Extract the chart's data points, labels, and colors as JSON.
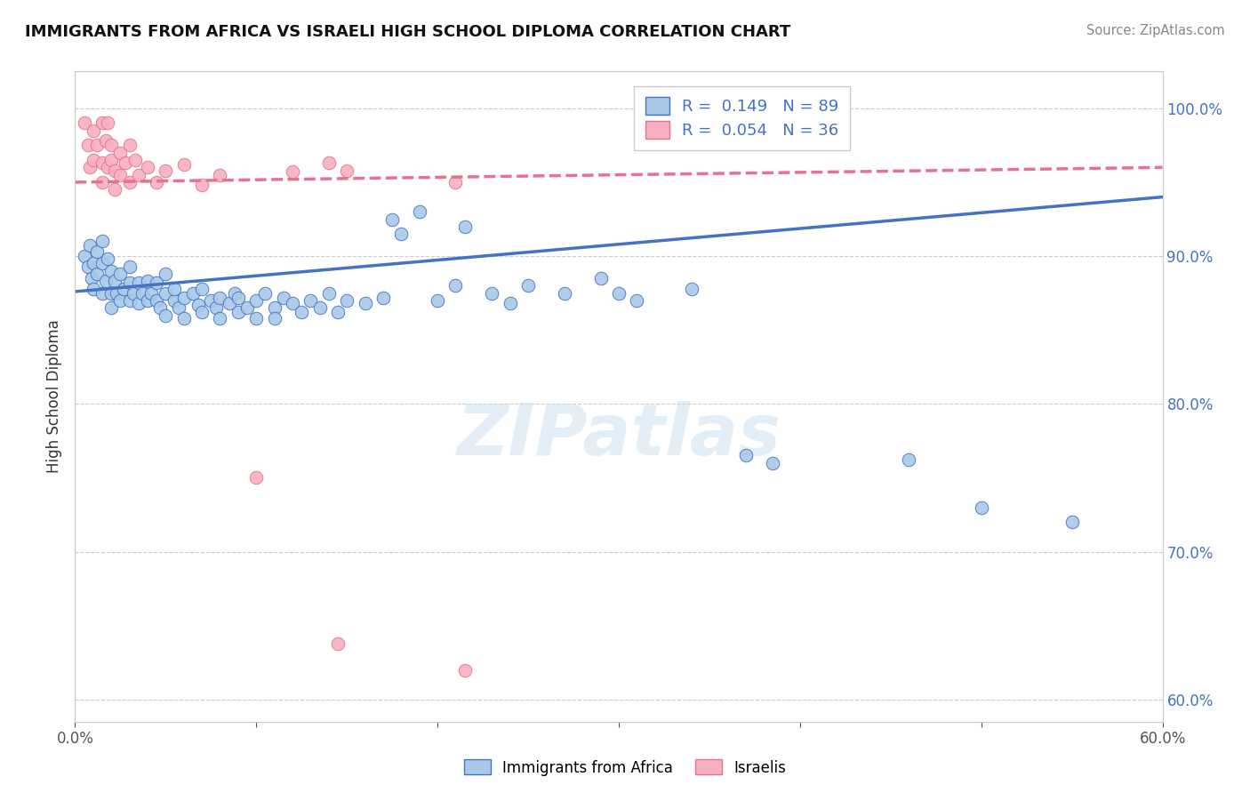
{
  "title": "IMMIGRANTS FROM AFRICA VS ISRAELI HIGH SCHOOL DIPLOMA CORRELATION CHART",
  "source": "Source: ZipAtlas.com",
  "ylabel": "High School Diploma",
  "legend_label1": "Immigrants from Africa",
  "legend_label2": "Israelis",
  "r1": 0.149,
  "n1": 89,
  "r2": 0.054,
  "n2": 36,
  "y_ticks_right": [
    0.6,
    0.7,
    0.8,
    0.9,
    1.0
  ],
  "y_tick_labels_right": [
    "60.0%",
    "70.0%",
    "80.0%",
    "90.0%",
    "100.0%"
  ],
  "xlim": [
    0.0,
    0.6
  ],
  "ylim": [
    0.585,
    1.025
  ],
  "color1": "#a8c8e8",
  "color2": "#f8b0c0",
  "line_color1": "#4472c4",
  "line_color2": "#e87090",
  "watermark": "ZIPatlas",
  "blue_scatter": [
    [
      0.005,
      0.9
    ],
    [
      0.007,
      0.893
    ],
    [
      0.008,
      0.907
    ],
    [
      0.009,
      0.885
    ],
    [
      0.01,
      0.895
    ],
    [
      0.01,
      0.878
    ],
    [
      0.012,
      0.903
    ],
    [
      0.012,
      0.888
    ],
    [
      0.015,
      0.895
    ],
    [
      0.015,
      0.875
    ],
    [
      0.015,
      0.91
    ],
    [
      0.017,
      0.883
    ],
    [
      0.018,
      0.898
    ],
    [
      0.02,
      0.875
    ],
    [
      0.02,
      0.89
    ],
    [
      0.02,
      0.865
    ],
    [
      0.022,
      0.883
    ],
    [
      0.023,
      0.875
    ],
    [
      0.025,
      0.888
    ],
    [
      0.025,
      0.87
    ],
    [
      0.027,
      0.878
    ],
    [
      0.03,
      0.882
    ],
    [
      0.03,
      0.87
    ],
    [
      0.03,
      0.893
    ],
    [
      0.032,
      0.875
    ],
    [
      0.035,
      0.868
    ],
    [
      0.035,
      0.882
    ],
    [
      0.037,
      0.875
    ],
    [
      0.04,
      0.87
    ],
    [
      0.04,
      0.883
    ],
    [
      0.042,
      0.875
    ],
    [
      0.045,
      0.87
    ],
    [
      0.045,
      0.882
    ],
    [
      0.047,
      0.865
    ],
    [
      0.05,
      0.875
    ],
    [
      0.05,
      0.86
    ],
    [
      0.05,
      0.888
    ],
    [
      0.055,
      0.87
    ],
    [
      0.055,
      0.878
    ],
    [
      0.057,
      0.865
    ],
    [
      0.06,
      0.872
    ],
    [
      0.06,
      0.858
    ],
    [
      0.065,
      0.875
    ],
    [
      0.068,
      0.867
    ],
    [
      0.07,
      0.862
    ],
    [
      0.07,
      0.878
    ],
    [
      0.075,
      0.87
    ],
    [
      0.078,
      0.865
    ],
    [
      0.08,
      0.872
    ],
    [
      0.08,
      0.858
    ],
    [
      0.085,
      0.868
    ],
    [
      0.088,
      0.875
    ],
    [
      0.09,
      0.862
    ],
    [
      0.09,
      0.872
    ],
    [
      0.095,
      0.865
    ],
    [
      0.1,
      0.87
    ],
    [
      0.1,
      0.858
    ],
    [
      0.105,
      0.875
    ],
    [
      0.11,
      0.865
    ],
    [
      0.11,
      0.858
    ],
    [
      0.115,
      0.872
    ],
    [
      0.12,
      0.868
    ],
    [
      0.125,
      0.862
    ],
    [
      0.13,
      0.87
    ],
    [
      0.135,
      0.865
    ],
    [
      0.14,
      0.875
    ],
    [
      0.145,
      0.862
    ],
    [
      0.15,
      0.87
    ],
    [
      0.16,
      0.868
    ],
    [
      0.17,
      0.872
    ],
    [
      0.175,
      0.925
    ],
    [
      0.18,
      0.915
    ],
    [
      0.19,
      0.93
    ],
    [
      0.2,
      0.87
    ],
    [
      0.21,
      0.88
    ],
    [
      0.215,
      0.92
    ],
    [
      0.23,
      0.875
    ],
    [
      0.24,
      0.868
    ],
    [
      0.25,
      0.88
    ],
    [
      0.27,
      0.875
    ],
    [
      0.29,
      0.885
    ],
    [
      0.3,
      0.875
    ],
    [
      0.31,
      0.87
    ],
    [
      0.34,
      0.878
    ],
    [
      0.37,
      0.765
    ],
    [
      0.385,
      0.76
    ],
    [
      0.46,
      0.762
    ],
    [
      0.5,
      0.73
    ],
    [
      0.55,
      0.72
    ]
  ],
  "pink_scatter": [
    [
      0.005,
      0.99
    ],
    [
      0.007,
      0.975
    ],
    [
      0.008,
      0.96
    ],
    [
      0.01,
      0.985
    ],
    [
      0.01,
      0.965
    ],
    [
      0.012,
      0.975
    ],
    [
      0.015,
      0.99
    ],
    [
      0.015,
      0.963
    ],
    [
      0.015,
      0.95
    ],
    [
      0.017,
      0.978
    ],
    [
      0.018,
      0.96
    ],
    [
      0.018,
      0.99
    ],
    [
      0.02,
      0.965
    ],
    [
      0.02,
      0.975
    ],
    [
      0.022,
      0.958
    ],
    [
      0.022,
      0.945
    ],
    [
      0.025,
      0.97
    ],
    [
      0.025,
      0.955
    ],
    [
      0.028,
      0.963
    ],
    [
      0.03,
      0.95
    ],
    [
      0.03,
      0.975
    ],
    [
      0.033,
      0.965
    ],
    [
      0.035,
      0.955
    ],
    [
      0.04,
      0.96
    ],
    [
      0.045,
      0.95
    ],
    [
      0.05,
      0.958
    ],
    [
      0.06,
      0.962
    ],
    [
      0.07,
      0.948
    ],
    [
      0.08,
      0.955
    ],
    [
      0.1,
      0.75
    ],
    [
      0.12,
      0.957
    ],
    [
      0.14,
      0.963
    ],
    [
      0.145,
      0.638
    ],
    [
      0.15,
      0.958
    ],
    [
      0.21,
      0.95
    ],
    [
      0.215,
      0.62
    ]
  ]
}
